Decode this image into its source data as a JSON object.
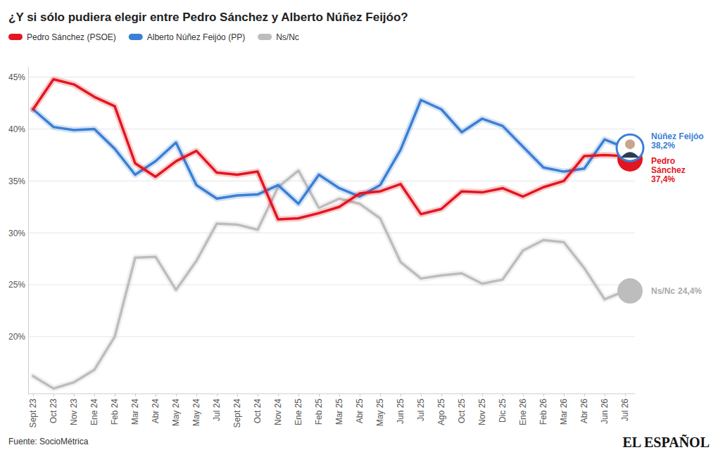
{
  "chart_data": {
    "type": "line",
    "title": "¿Y si sólo pudiera elegir entre Pedro Sánchez y Alberto Núñez Feijóo?",
    "categories": [
      "Sept 23",
      "Oct 23",
      "Nov 23",
      "Ene 24",
      "Feb 24",
      "Mar 24",
      "Abr 24",
      "May 24",
      "May 24",
      "Jul 24",
      "Sept 24",
      "Oct 24",
      "Nov 24",
      "Ene 25",
      "Feb 25",
      "Mar 25",
      "Abr 25",
      "May 25",
      "Jun 25",
      "Jul 25",
      "Ago 25",
      "Oct 25",
      "Nov 25",
      "Dic 25",
      "Ene 26",
      "Feb 26",
      "Mar 26",
      "Abr 26",
      "Jun 26",
      "Jul 26"
    ],
    "series": [
      {
        "name": "Pedro Sánchez (PSOE)",
        "color": "#e3151f",
        "values": [
          41.9,
          44.8,
          44.3,
          43.1,
          42.2,
          36.7,
          35.4,
          36.9,
          37.9,
          35.8,
          35.6,
          35.9,
          31.3,
          31.4,
          31.9,
          32.5,
          33.8,
          34.0,
          34.7,
          31.8,
          32.3,
          34.0,
          33.9,
          34.3,
          33.5,
          34.4,
          35.0,
          37.4,
          37.5,
          37.4
        ],
        "end_label": "Pedro Sánchez",
        "value_labels": [
          null,
          null,
          null,
          null,
          null,
          null,
          null,
          null,
          null,
          null,
          null,
          null,
          null,
          null,
          null,
          null,
          null,
          null,
          null,
          null,
          null,
          null,
          null,
          null,
          null,
          null,
          null,
          null,
          null,
          "37,4%"
        ]
      },
      {
        "name": "Alberto Núñez Feijóo (PP)",
        "color": "#3a7fd5",
        "values": [
          41.9,
          40.2,
          39.9,
          40.0,
          38.1,
          35.6,
          36.9,
          38.7,
          34.6,
          33.3,
          33.6,
          33.7,
          34.6,
          32.8,
          35.6,
          34.3,
          33.5,
          34.6,
          38.0,
          42.8,
          41.9,
          39.7,
          41.0,
          40.3,
          38.3,
          36.3,
          35.9,
          36.2,
          39.0,
          38.2
        ],
        "end_label": "Núñez Feijóo",
        "value_labels": [
          null,
          null,
          null,
          null,
          null,
          null,
          null,
          null,
          null,
          null,
          null,
          null,
          null,
          null,
          null,
          null,
          null,
          null,
          null,
          null,
          null,
          null,
          null,
          null,
          null,
          null,
          null,
          null,
          null,
          "38,2%"
        ]
      },
      {
        "name": "Ns/Nc",
        "color": "#bdbdbd",
        "values": [
          16.2,
          15.0,
          15.6,
          16.8,
          20.0,
          27.6,
          27.7,
          24.5,
          27.3,
          30.9,
          30.8,
          30.3,
          34.4,
          36.0,
          32.4,
          33.3,
          32.8,
          31.4,
          27.2,
          25.6,
          25.9,
          26.1,
          25.1,
          25.5,
          28.3,
          29.3,
          29.1,
          26.6,
          23.6,
          24.4
        ],
        "end_label": "Ns/Nc",
        "value_labels": [
          null,
          null,
          null,
          null,
          null,
          null,
          null,
          null,
          null,
          null,
          null,
          null,
          null,
          null,
          null,
          null,
          null,
          null,
          null,
          null,
          null,
          null,
          null,
          null,
          null,
          null,
          null,
          null,
          null,
          "24,4%"
        ]
      }
    ],
    "ylim": [
      14.5,
      46
    ],
    "yticks": [
      {
        "value": 20,
        "label": "20%"
      },
      {
        "value": 25,
        "label": "25%"
      },
      {
        "value": 30,
        "label": "30%"
      },
      {
        "value": 35,
        "label": "35%"
      },
      {
        "value": 40,
        "label": "40%"
      },
      {
        "value": 45,
        "label": "45%"
      }
    ],
    "grid": true,
    "legend": "top-left",
    "source": "Fuente: SocioMétrica",
    "credit": "EL ESPAÑOL"
  }
}
